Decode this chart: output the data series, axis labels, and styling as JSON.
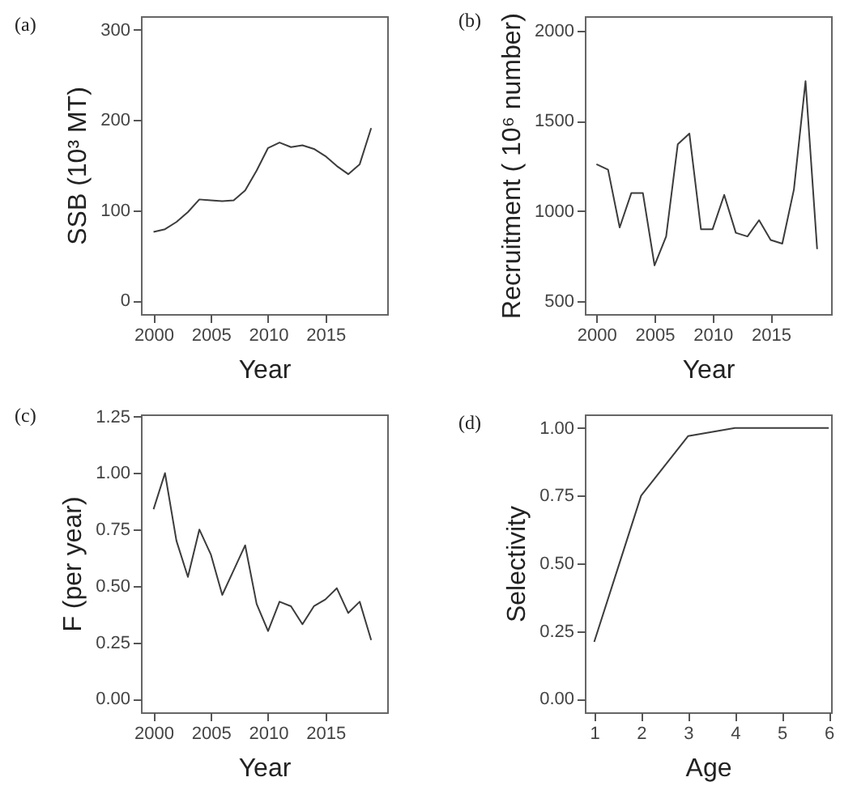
{
  "chart_data": [
    {
      "type": "line",
      "title": "(a)",
      "xlabel": "Year",
      "ylabel": "SSB (10³ MT)",
      "x": [
        2000,
        2001,
        2002,
        2003,
        2004,
        2005,
        2006,
        2007,
        2008,
        2009,
        2010,
        2011,
        2012,
        2013,
        2014,
        2015,
        2016,
        2017,
        2018,
        2019
      ],
      "series": [
        {
          "color": "#3c3c3c",
          "values": [
            76,
            79,
            87,
            98,
            112,
            111,
            110,
            111,
            122,
            144,
            169,
            175,
            170,
            172,
            168,
            160,
            149,
            140,
            151,
            191
          ]
        }
      ],
      "xlim": [
        1998.9,
        2020.4
      ],
      "xticks": [
        2000,
        2005,
        2010,
        2015
      ],
      "ylim": [
        -15,
        315
      ],
      "yticks": [
        0,
        100,
        200,
        300
      ]
    },
    {
      "type": "line",
      "title": "(b)",
      "xlabel": "Year",
      "ylabel": "Recruitment ( 10⁶ number)",
      "x": [
        2000,
        2001,
        2002,
        2003,
        2004,
        2005,
        2006,
        2007,
        2008,
        2009,
        2010,
        2011,
        2012,
        2013,
        2014,
        2015,
        2016,
        2017,
        2018,
        2019
      ],
      "series": [
        {
          "color": "#3c3c3c",
          "values": [
            1260,
            1230,
            910,
            1100,
            1100,
            700,
            860,
            1370,
            1430,
            900,
            900,
            1090,
            880,
            860,
            950,
            840,
            820,
            1120,
            1720,
            790
          ]
        }
      ],
      "xlim": [
        1999,
        2020.2
      ],
      "xticks": [
        2000,
        2005,
        2010,
        2015
      ],
      "ylim": [
        430,
        2080
      ],
      "yticks": [
        500,
        1000,
        1500,
        2000
      ]
    },
    {
      "type": "line",
      "title": "(c)",
      "xlabel": "Year",
      "ylabel": "F (per year)",
      "x": [
        2000,
        2001,
        2002,
        2003,
        2004,
        2005,
        2006,
        2007,
        2008,
        2009,
        2010,
        2011,
        2012,
        2013,
        2014,
        2015,
        2016,
        2017,
        2018,
        2019
      ],
      "series": [
        {
          "color": "#3c3c3c",
          "values": [
            0.84,
            1.0,
            0.7,
            0.54,
            0.75,
            0.64,
            0.46,
            0.57,
            0.68,
            0.42,
            0.3,
            0.43,
            0.41,
            0.33,
            0.41,
            0.44,
            0.49,
            0.38,
            0.43,
            0.26
          ]
        }
      ],
      "xlim": [
        1998.9,
        2020.4
      ],
      "xticks": [
        2000,
        2005,
        2010,
        2015
      ],
      "ylim": [
        -0.06,
        1.26
      ],
      "yticks": [
        {
          "value": 0,
          "label": "0.00"
        },
        {
          "value": 0.25,
          "label": "0.25"
        },
        {
          "value": 0.5,
          "label": "0.50"
        },
        {
          "value": 0.75,
          "label": "0.75"
        },
        {
          "value": 1,
          "label": "1.00"
        },
        {
          "value": 1.25,
          "label": "1.25"
        }
      ]
    },
    {
      "type": "line",
      "title": "(d)",
      "xlabel": "Age",
      "ylabel": "Selectivity",
      "x": [
        1,
        2,
        3,
        4,
        5,
        6
      ],
      "series": [
        {
          "color": "#3c3c3c",
          "values": [
            0.21,
            0.75,
            0.97,
            1.0,
            1.0,
            1.0
          ]
        }
      ],
      "xlim": [
        0.8,
        6.05
      ],
      "xticks": [
        1,
        2,
        3,
        4,
        5,
        6
      ],
      "ylim": [
        -0.05,
        1.05
      ],
      "yticks": [
        {
          "value": 0,
          "label": "0.00"
        },
        {
          "value": 0.25,
          "label": "0.25"
        },
        {
          "value": 0.5,
          "label": "0.50"
        },
        {
          "value": 0.75,
          "label": "0.75"
        },
        {
          "value": 1,
          "label": "1.00"
        }
      ]
    }
  ]
}
